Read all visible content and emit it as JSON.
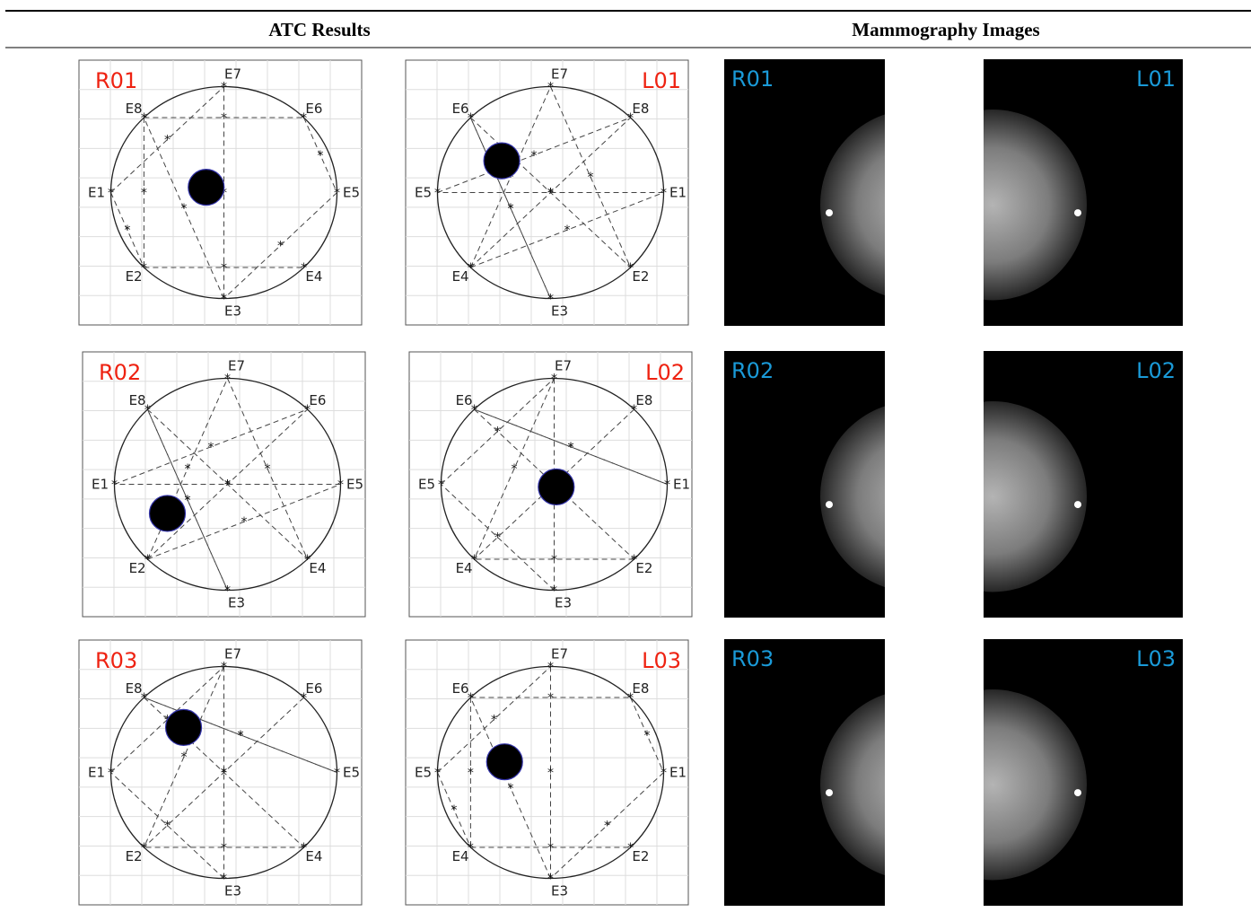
{
  "header": {
    "columns": [
      "ATC Results",
      "Mammography Images"
    ]
  },
  "rows": [
    {
      "atc": [
        {
          "label": "R01",
          "electrodes": [
            "E1",
            "E8",
            "E7",
            "E6",
            "E5",
            "E4",
            "E3",
            "E2"
          ]
        },
        {
          "label": "L01",
          "electrodes": [
            "E5",
            "E6",
            "E7",
            "E8",
            "E1",
            "E2",
            "E3",
            "E4"
          ]
        }
      ],
      "mammo": [
        {
          "label": "R01"
        },
        {
          "label": "L01"
        }
      ]
    },
    {
      "atc": [
        {
          "label": "R02",
          "electrodes": [
            "E1",
            "E8",
            "E7",
            "E6",
            "E5",
            "E4",
            "E3",
            "E2"
          ]
        },
        {
          "label": "L02",
          "electrodes": [
            "E5",
            "E6",
            "E7",
            "E8",
            "E1",
            "E2",
            "E3",
            "E4"
          ]
        }
      ],
      "mammo": [
        {
          "label": "R02"
        },
        {
          "label": "L02"
        }
      ]
    },
    {
      "atc": [
        {
          "label": "R03",
          "electrodes": [
            "E1",
            "E8",
            "E7",
            "E6",
            "E5",
            "E4",
            "E3",
            "E2"
          ]
        },
        {
          "label": "L03",
          "electrodes": [
            "E5",
            "E6",
            "E7",
            "E8",
            "E1",
            "E2",
            "E3",
            "E4"
          ]
        }
      ],
      "mammo": [
        {
          "label": "R03"
        },
        {
          "label": "L03"
        }
      ]
    }
  ]
}
